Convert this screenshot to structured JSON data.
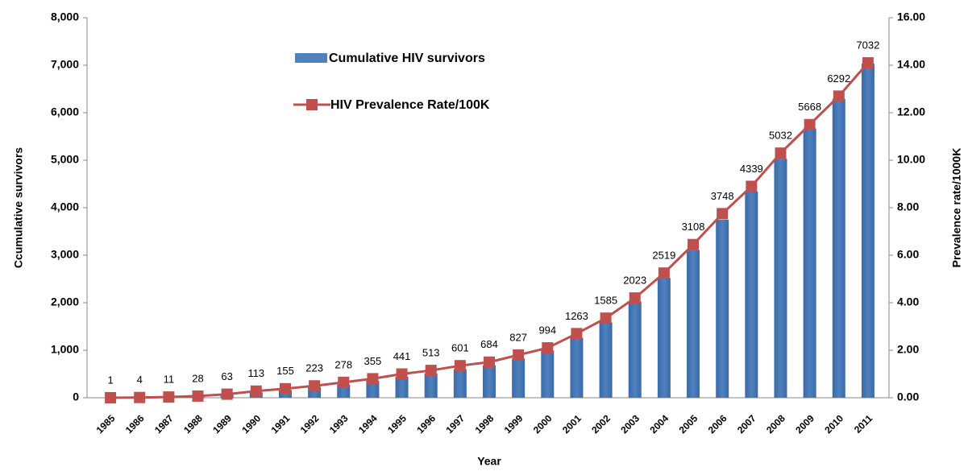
{
  "chart_data": {
    "type": "bar_line",
    "x_label": "Year",
    "y_label": "Ccumulative  survivors",
    "y2_label": "Prevalence rate/1000K",
    "categories": [
      "1985",
      "1986",
      "1987",
      "1988",
      "1989",
      "1990",
      "1991",
      "1992",
      "1993",
      "1994",
      "1995",
      "1996",
      "1997",
      "1998",
      "1999",
      "2000",
      "2001",
      "2002",
      "2003",
      "2004",
      "2005",
      "2006",
      "2007",
      "2008",
      "2009",
      "2010",
      "2011"
    ],
    "series": [
      {
        "name": "Cumulative HIV survivors",
        "color": "#4f81bd",
        "type": "bar",
        "values": [
          1,
          4,
          11,
          28,
          63,
          113,
          155,
          223,
          278,
          355,
          441,
          513,
          601,
          684,
          827,
          994,
          1263,
          1585,
          2023,
          2519,
          3108,
          3748,
          4339,
          5032,
          5668,
          6292,
          7032
        ]
      },
      {
        "name": "HIV Prevalence Rate/100K",
        "color": "#c0504d",
        "type": "line",
        "axis": "y2",
        "values": [
          0.0,
          0.01,
          0.03,
          0.07,
          0.15,
          0.28,
          0.38,
          0.5,
          0.65,
          0.8,
          1.0,
          1.15,
          1.35,
          1.5,
          1.8,
          2.1,
          2.7,
          3.35,
          4.2,
          5.25,
          6.45,
          7.75,
          8.9,
          10.3,
          11.5,
          12.7,
          14.1
        ]
      }
    ],
    "ylim": [
      0,
      8000
    ],
    "yticks": [
      0,
      {
        "value": 1000,
        "label": "1,000"
      },
      {
        "value": 2000,
        "label": "2,000"
      },
      {
        "value": 3000,
        "label": "3,000"
      },
      {
        "value": 4000,
        "label": "4,000"
      },
      {
        "value": 5000,
        "label": "5,000"
      },
      {
        "value": 6000,
        "label": "6,000"
      },
      {
        "value": 7000,
        "label": "7,000"
      },
      {
        "value": 8000,
        "label": "8,000"
      }
    ],
    "y2lim": [
      0,
      16
    ],
    "y2ticks": [
      {
        "value": 0,
        "label": "0.00"
      },
      {
        "value": 2,
        "label": "2.00"
      },
      {
        "value": 4,
        "label": "4.00"
      },
      {
        "value": 6,
        "label": "6.00"
      },
      {
        "value": 8,
        "label": "8.00"
      },
      {
        "value": 10,
        "label": "10.00"
      },
      {
        "value": 12,
        "label": "12.00"
      },
      {
        "value": 14,
        "label": "14.00"
      },
      {
        "value": 16,
        "label": "16.00"
      }
    ],
    "legend": "top-left"
  }
}
